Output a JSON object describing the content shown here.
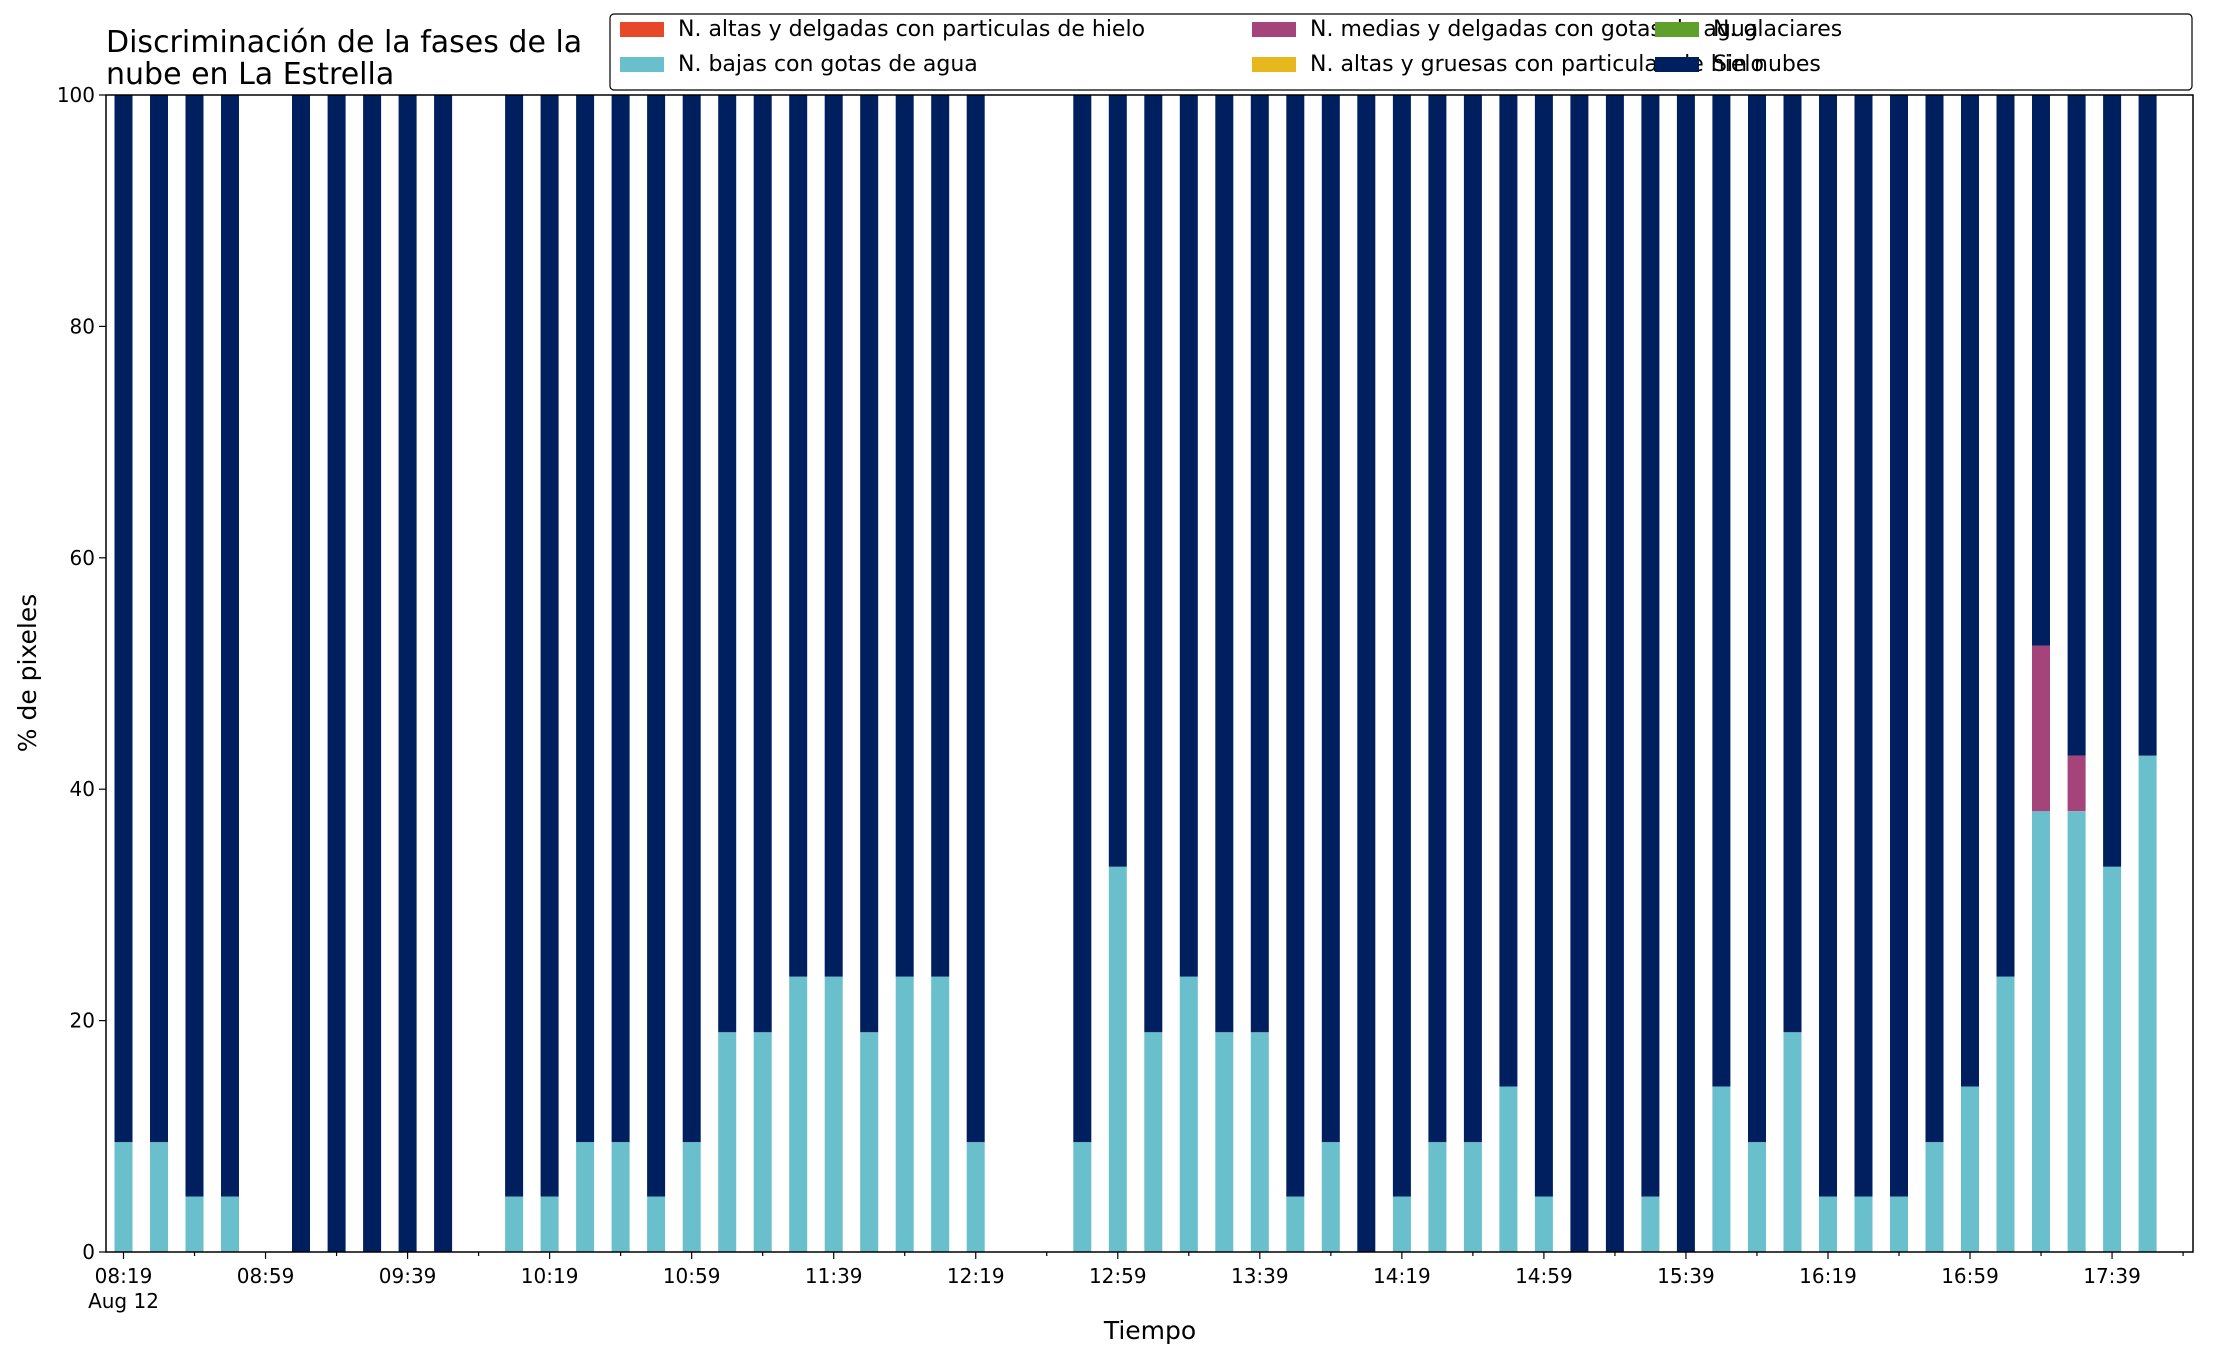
{
  "chart_data": {
    "type": "bar",
    "stacked": true,
    "title_lines": [
      "Discriminación de la fases de la",
      "nube en La Estrella"
    ],
    "xlabel": "Tiempo",
    "ylabel": "% de pixeles",
    "ylim": [
      0,
      100
    ],
    "y_ticks": [
      "0",
      "20",
      "40",
      "60",
      "80",
      "100"
    ],
    "x_tick_labels": [
      "08:19",
      "08:59",
      "09:39",
      "10:19",
      "10:59",
      "11:39",
      "12:19",
      "12:59",
      "13:39",
      "14:19",
      "14:59",
      "15:39",
      "16:19",
      "16:59",
      "17:39"
    ],
    "x_tick_sublabel": "Aug 12",
    "x_start": "08:19",
    "x_step_minutes": 10,
    "legend_position": "top-right",
    "legend": [
      {
        "name": "N. altas y delgadas con particulas de hielo",
        "color": "#e8482a"
      },
      {
        "name": "N. bajas con gotas de agua",
        "color": "#69bfcb"
      },
      {
        "name": "N. medias y delgadas con gotas de agua",
        "color": "#a4447a"
      },
      {
        "name": "N. altas y gruesas con particulas de hielo",
        "color": "#e6b81e"
      },
      {
        "name": "N. glaciares",
        "color": "#5f9f2c"
      },
      {
        "name": "Sin nubes",
        "color": "#001f5f"
      }
    ],
    "series": [
      {
        "name": "N. altas y delgadas con particulas de hielo",
        "color": "#e8482a",
        "values": [
          0,
          0,
          0,
          0,
          null,
          0,
          0,
          0,
          0,
          0,
          null,
          0,
          0,
          0,
          0,
          0,
          0,
          0,
          0,
          0,
          0,
          0,
          0,
          0,
          0,
          null,
          null,
          0,
          0,
          0,
          0,
          0,
          0,
          0,
          0,
          0,
          0,
          0,
          0,
          0,
          0,
          0,
          0,
          0,
          0,
          0,
          0,
          0,
          0,
          0,
          0,
          0,
          0,
          0,
          0,
          0,
          0,
          0,
          0
        ]
      },
      {
        "name": "N. altas y gruesas con particulas de hielo",
        "color": "#e6b81e",
        "values": [
          0,
          0,
          0,
          0,
          null,
          0,
          0,
          0,
          0,
          0,
          null,
          0,
          0,
          0,
          0,
          0,
          0,
          0,
          0,
          0,
          0,
          0,
          0,
          0,
          0,
          null,
          null,
          0,
          0,
          0,
          0,
          0,
          0,
          0,
          0,
          0,
          0,
          0,
          0,
          0,
          0,
          0,
          0,
          0,
          0,
          0,
          0,
          0,
          0,
          0,
          0,
          0,
          0,
          0,
          0,
          0,
          0,
          0,
          0
        ]
      },
      {
        "name": "N. bajas con gotas de agua",
        "color": "#69bfcb",
        "values": [
          9.5,
          9.5,
          4.8,
          4.8,
          null,
          0,
          0,
          0,
          0,
          0,
          null,
          4.8,
          4.8,
          9.5,
          9.5,
          4.8,
          9.5,
          19,
          19,
          23.8,
          23.8,
          19,
          23.8,
          23.8,
          9.5,
          null,
          null,
          9.5,
          33.3,
          19,
          23.8,
          19,
          19,
          4.8,
          9.5,
          0,
          4.8,
          9.5,
          9.5,
          14.3,
          4.8,
          0,
          0,
          4.8,
          0,
          14.3,
          9.5,
          19,
          4.8,
          4.8,
          4.8,
          9.5,
          14.3,
          23.8,
          38.1,
          38.1,
          33.3,
          42.9
        ]
      },
      {
        "name": "N. glaciares",
        "color": "#5f9f2c",
        "values": [
          0,
          0,
          0,
          0,
          null,
          0,
          0,
          0,
          0,
          0,
          null,
          0,
          0,
          0,
          0,
          0,
          0,
          0,
          0,
          0,
          0,
          0,
          0,
          0,
          0,
          null,
          null,
          0,
          0,
          0,
          0,
          0,
          0,
          0,
          0,
          0,
          0,
          0,
          0,
          0,
          0,
          0,
          0,
          0,
          0,
          0,
          0,
          0,
          0,
          0,
          0,
          0,
          0,
          0,
          0,
          0,
          0,
          0,
          0
        ]
      },
      {
        "name": "N. medias y delgadas con gotas de agua",
        "color": "#a4447a",
        "values": [
          0,
          0,
          0,
          0,
          null,
          0,
          0,
          0,
          0,
          0,
          null,
          0,
          0,
          0,
          0,
          0,
          0,
          0,
          0,
          0,
          0,
          0,
          0,
          0,
          0,
          null,
          null,
          0,
          0,
          0,
          0,
          0,
          0,
          0,
          0,
          0,
          0,
          0,
          0,
          0,
          0,
          0,
          0,
          0,
          0,
          0,
          0,
          0,
          0,
          0,
          0,
          0,
          0,
          0,
          14.3,
          4.8,
          0,
          0
        ]
      },
      {
        "name": "Sin nubes",
        "color": "#001f5f",
        "values": [
          90.5,
          90.5,
          95.2,
          95.2,
          null,
          100,
          100,
          100,
          100,
          100,
          null,
          95.2,
          95.2,
          90.5,
          90.5,
          95.2,
          90.5,
          81,
          81,
          76.2,
          76.2,
          81,
          76.2,
          76.2,
          90.5,
          null,
          null,
          90.5,
          66.7,
          81,
          76.2,
          81,
          81,
          95.2,
          90.5,
          100,
          95.2,
          90.5,
          90.5,
          85.7,
          95.2,
          100,
          100,
          95.2,
          100,
          85.7,
          90.5,
          81,
          95.2,
          95.2,
          95.2,
          90.5,
          85.7,
          76.2,
          47.6,
          57.1,
          66.7,
          57.1
        ]
      }
    ]
  }
}
